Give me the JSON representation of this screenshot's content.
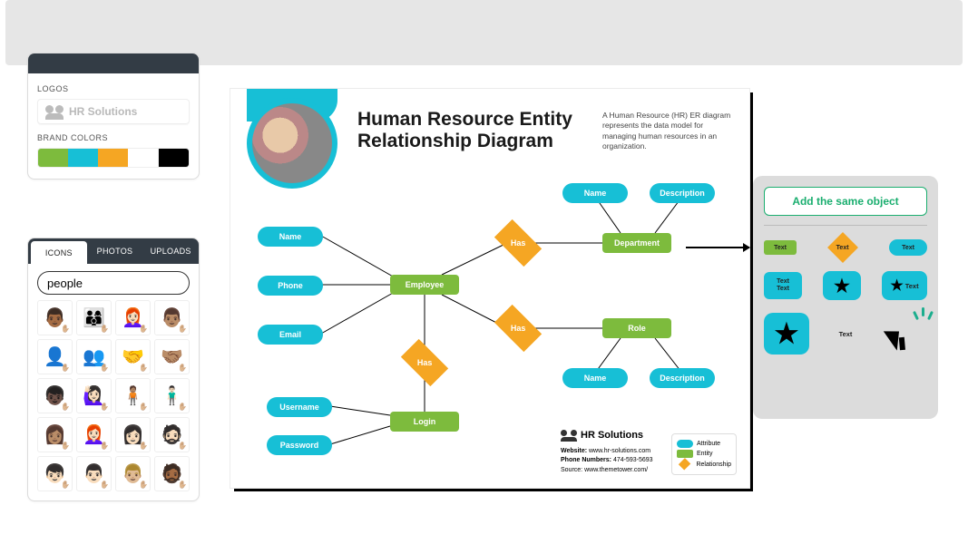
{
  "topbar": {},
  "brand_panel": {
    "logos_label": "LOGOS",
    "logo_text": "HR Solutions",
    "brand_colors_label": "BRAND COLORS",
    "swatches": [
      "#7dbb3d",
      "#17bfd6",
      "#f5a623",
      "#ffffff",
      "#000000"
    ]
  },
  "icons_panel": {
    "tabs": {
      "icons": "ICONS",
      "photos": "PHOTOS",
      "uploads": "UPLOADS"
    },
    "search_value": "people",
    "grid": [
      "👨🏾",
      "👨‍👩‍👦",
      "👩🏻‍🦰",
      "👨🏽",
      "👤",
      "👥",
      "🤝",
      "🤝🏽",
      "👦🏿",
      "🙋🏻‍♀️",
      "🧍🏽",
      "🧍🏻‍♂️",
      "👩🏽",
      "👩🏻‍🦰",
      "👩🏻",
      "🧔🏻",
      "👦🏻",
      "👨🏻",
      "👨🏼",
      "🧔🏾"
    ]
  },
  "canvas": {
    "title": "Human Resource Entity Relationship Diagram",
    "subtitle": "A Human Resource (HR) ER diagram represents the data model for managing human resources in an organization.",
    "colors": {
      "attribute": "#17bfd6",
      "entity": "#7dbb3d",
      "relationship": "#f5a623",
      "line": "#000000",
      "background": "#ffffff"
    },
    "nodes": {
      "name1": "Name",
      "phone": "Phone",
      "email": "Email",
      "employee": "Employee",
      "has1": "Has",
      "has2": "Has",
      "has3": "Has",
      "department": "Department",
      "role": "Role",
      "dname": "Name",
      "ddesc": "Description",
      "rname": "Name",
      "rdesc": "Description",
      "login": "Login",
      "username": "Username",
      "password": "Password"
    },
    "footer": {
      "company": "HR Solutions",
      "website_label": "Website:",
      "website": "www.hr-solutions.com",
      "phone_label": "Phone Numbers:",
      "phone": "474-593-5693",
      "source_label": "Source:",
      "source": "www.themetower.com/"
    },
    "legend": {
      "attribute": "Attribute",
      "entity": "Entity",
      "relationship": "Relationship"
    }
  },
  "popover": {
    "cta": "Add the same object",
    "labels": {
      "text": "Text"
    }
  }
}
